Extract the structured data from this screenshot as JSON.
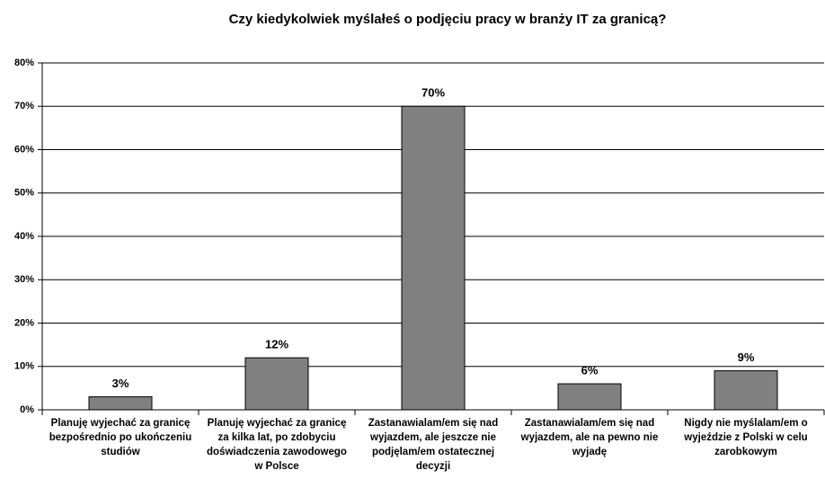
{
  "chart_data": {
    "type": "bar",
    "title": "Czy kiedykolwiek myślałeś o podjęciu pracy w branży IT za granicą?",
    "categories": [
      "Planuję wyjechać za granicę bezpośrednio po ukończeniu studiów",
      "Planuję wyjechać za granicę za kilka lat, po zdobyciu doświadczenia zawodowego w Polsce",
      "Zastanawialam/em się nad wyjazdem, ale jeszcze nie podjęlam/em ostatecznej decyzji",
      "Zastanawialam/em się nad wyjazdem, ale na pewno nie wyjadę",
      "Nigdy nie myślalam/em o wyjeździe z Polski w celu zarobkowym"
    ],
    "values": [
      3,
      12,
      70,
      6,
      9
    ],
    "value_labels": [
      "3%",
      "12%",
      "70%",
      "6%",
      "9%"
    ],
    "color": "#808080",
    "ylim": [
      0,
      80
    ],
    "yticks": [
      {
        "value": 0,
        "label": "0%"
      },
      {
        "value": 10,
        "label": "10%"
      },
      {
        "value": 20,
        "label": "20%"
      },
      {
        "value": 30,
        "label": "30%"
      },
      {
        "value": 40,
        "label": "40%"
      },
      {
        "value": 50,
        "label": "50%"
      },
      {
        "value": 60,
        "label": "60%"
      },
      {
        "value": 70,
        "label": "70%"
      },
      {
        "value": 80,
        "label": "80%"
      }
    ],
    "grid": true
  }
}
